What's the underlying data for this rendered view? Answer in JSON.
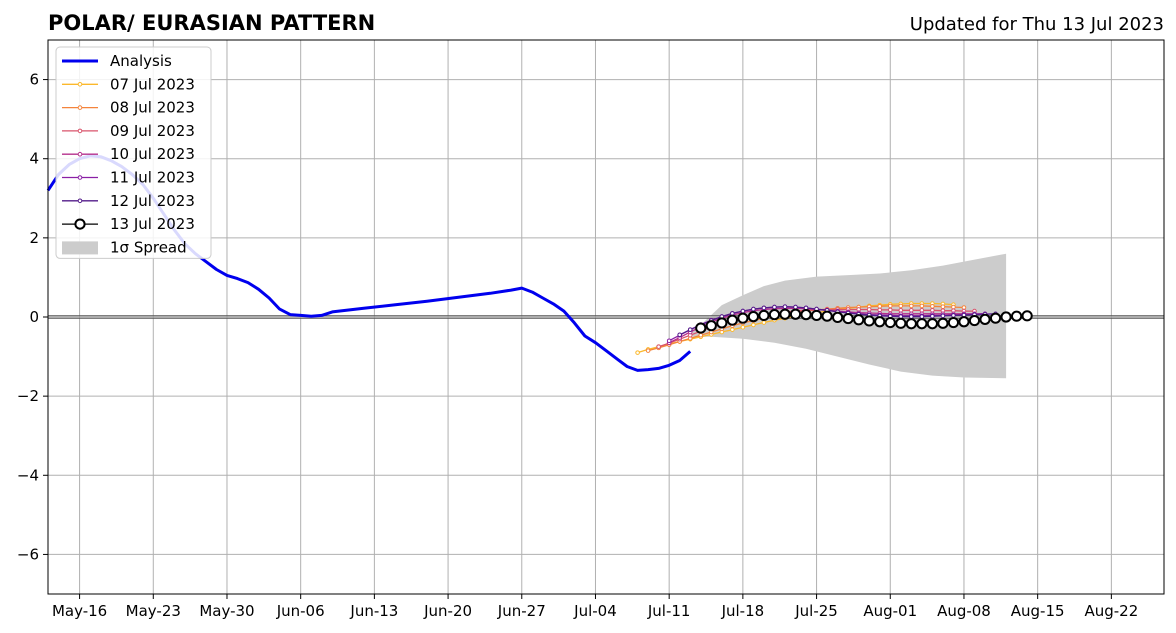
{
  "chart_data": {
    "type": "line",
    "title": "POLAR/ EURASIAN  PATTERN",
    "subtitle": "Updated for Thu 13 Jul 2023",
    "xlabel": "",
    "ylabel": "",
    "x_range": [
      "2023-05-13",
      "2023-08-27"
    ],
    "ylim": [
      -7,
      7
    ],
    "yticks": [
      6,
      4,
      2,
      0,
      -2,
      -4,
      -6
    ],
    "ytick_labels": [
      "6",
      "4",
      "2",
      "0",
      "−2",
      "−4",
      "−6"
    ],
    "xticks": [
      "2023-05-16",
      "2023-05-23",
      "2023-05-30",
      "2023-06-06",
      "2023-06-13",
      "2023-06-20",
      "2023-06-27",
      "2023-07-04",
      "2023-07-11",
      "2023-07-18",
      "2023-07-25",
      "2023-08-01",
      "2023-08-08",
      "2023-08-15",
      "2023-08-22"
    ],
    "xtick_labels": [
      "May-16",
      "May-23",
      "May-30",
      "Jun-06",
      "Jun-13",
      "Jun-20",
      "Jun-27",
      "Jul-04",
      "Jul-11",
      "Jul-18",
      "Jul-25",
      "Aug-01",
      "Aug-08",
      "Aug-15",
      "Aug-22"
    ],
    "grid": true,
    "zero_line": true,
    "legend_position": "upper-left",
    "analysis": {
      "name": "Analysis",
      "color": "#0000ee",
      "points": [
        [
          "2023-05-13",
          3.2
        ],
        [
          "2023-05-14",
          3.6
        ],
        [
          "2023-05-15",
          3.85
        ],
        [
          "2023-05-16",
          4.0
        ],
        [
          "2023-05-17",
          4.07
        ],
        [
          "2023-05-18",
          4.05
        ],
        [
          "2023-05-19",
          3.95
        ],
        [
          "2023-05-20",
          3.8
        ],
        [
          "2023-05-21",
          3.6
        ],
        [
          "2023-05-22",
          3.35
        ],
        [
          "2023-05-23",
          3.0
        ],
        [
          "2023-05-24",
          2.6
        ],
        [
          "2023-05-25",
          2.2
        ],
        [
          "2023-05-26",
          1.85
        ],
        [
          "2023-05-27",
          1.6
        ],
        [
          "2023-05-28",
          1.4
        ],
        [
          "2023-05-29",
          1.2
        ],
        [
          "2023-05-30",
          1.05
        ],
        [
          "2023-05-31",
          0.97
        ],
        [
          "2023-06-01",
          0.87
        ],
        [
          "2023-06-02",
          0.7
        ],
        [
          "2023-06-03",
          0.48
        ],
        [
          "2023-06-04",
          0.2
        ],
        [
          "2023-06-05",
          0.06
        ],
        [
          "2023-06-06",
          0.04
        ],
        [
          "2023-06-07",
          0.02
        ],
        [
          "2023-06-08",
          0.04
        ],
        [
          "2023-06-09",
          0.13
        ],
        [
          "2023-06-12",
          0.22
        ],
        [
          "2023-06-15",
          0.31
        ],
        [
          "2023-06-18",
          0.4
        ],
        [
          "2023-06-21",
          0.5
        ],
        [
          "2023-06-24",
          0.6
        ],
        [
          "2023-06-26",
          0.68
        ],
        [
          "2023-06-27",
          0.73
        ],
        [
          "2023-06-28",
          0.63
        ],
        [
          "2023-06-29",
          0.48
        ],
        [
          "2023-06-30",
          0.33
        ],
        [
          "2023-07-01",
          0.15
        ],
        [
          "2023-07-02",
          -0.15
        ],
        [
          "2023-07-03",
          -0.48
        ],
        [
          "2023-07-04",
          -0.65
        ],
        [
          "2023-07-05",
          -0.85
        ],
        [
          "2023-07-06",
          -1.05
        ],
        [
          "2023-07-07",
          -1.25
        ],
        [
          "2023-07-08",
          -1.35
        ],
        [
          "2023-07-09",
          -1.33
        ],
        [
          "2023-07-10",
          -1.3
        ],
        [
          "2023-07-11",
          -1.22
        ],
        [
          "2023-07-12",
          -1.1
        ],
        [
          "2023-07-13",
          -0.87
        ]
      ]
    },
    "spread": {
      "name": "1σ Spread",
      "color": "#cccccc",
      "upper": [
        [
          "2023-07-13",
          -0.35
        ],
        [
          "2023-07-14",
          -0.2
        ],
        [
          "2023-07-15",
          0.05
        ],
        [
          "2023-07-16",
          0.3
        ],
        [
          "2023-07-18",
          0.55
        ],
        [
          "2023-07-20",
          0.78
        ],
        [
          "2023-07-22",
          0.92
        ],
        [
          "2023-07-25",
          1.02
        ],
        [
          "2023-07-28",
          1.06
        ],
        [
          "2023-07-31",
          1.1
        ],
        [
          "2023-08-03",
          1.18
        ],
        [
          "2023-08-06",
          1.3
        ],
        [
          "2023-08-09",
          1.45
        ],
        [
          "2023-08-12",
          1.6
        ]
      ],
      "lower": [
        [
          "2023-07-13",
          -0.5
        ],
        [
          "2023-07-15",
          -0.5
        ],
        [
          "2023-07-18",
          -0.55
        ],
        [
          "2023-07-21",
          -0.65
        ],
        [
          "2023-07-24",
          -0.8
        ],
        [
          "2023-07-27",
          -1.0
        ],
        [
          "2023-07-30",
          -1.2
        ],
        [
          "2023-08-02",
          -1.38
        ],
        [
          "2023-08-05",
          -1.48
        ],
        [
          "2023-08-08",
          -1.53
        ],
        [
          "2023-08-12",
          -1.55
        ]
      ]
    },
    "forecasts": [
      {
        "name": "07 Jul 2023",
        "color": "#fbb82b",
        "start": "2023-07-08",
        "values": [
          -0.9,
          -0.82,
          -0.75,
          -0.68,
          -0.62,
          -0.56,
          -0.5,
          -0.44,
          -0.38,
          -0.32,
          -0.26,
          -0.2,
          -0.14,
          -0.08,
          -0.03,
          0.02,
          0.07,
          0.11,
          0.15,
          0.19,
          0.22,
          0.25,
          0.28,
          0.3,
          0.32,
          0.33,
          0.34,
          0.34,
          0.34,
          0.33,
          0.31
        ]
      },
      {
        "name": "08 Jul 2023",
        "color": "#f4843c",
        "start": "2023-07-09",
        "values": [
          -0.85,
          -0.78,
          -0.7,
          -0.62,
          -0.54,
          -0.46,
          -0.38,
          -0.3,
          -0.22,
          -0.15,
          -0.09,
          -0.03,
          0.02,
          0.07,
          0.11,
          0.15,
          0.18,
          0.2,
          0.22,
          0.24,
          0.25,
          0.26,
          0.27,
          0.28,
          0.28,
          0.28,
          0.28,
          0.27,
          0.26,
          0.25,
          0.24
        ]
      },
      {
        "name": "09 Jul 2023",
        "color": "#d9536b",
        "start": "2023-07-10",
        "values": [
          -0.75,
          -0.66,
          -0.56,
          -0.46,
          -0.36,
          -0.26,
          -0.17,
          -0.1,
          -0.04,
          0.01,
          0.06,
          0.1,
          0.13,
          0.15,
          0.17,
          0.18,
          0.19,
          0.19,
          0.19,
          0.19,
          0.19,
          0.18,
          0.18,
          0.17,
          0.17,
          0.17,
          0.17,
          0.16,
          0.16,
          0.15,
          0.15
        ]
      },
      {
        "name": "10 Jul 2023",
        "color": "#b52f8c",
        "start": "2023-07-11",
        "values": [
          -0.65,
          -0.52,
          -0.38,
          -0.25,
          -0.13,
          -0.03,
          0.05,
          0.11,
          0.16,
          0.19,
          0.21,
          0.22,
          0.22,
          0.21,
          0.19,
          0.17,
          0.15,
          0.13,
          0.11,
          0.1,
          0.09,
          0.08,
          0.08,
          0.08,
          0.08,
          0.08,
          0.08,
          0.08,
          0.08,
          0.08,
          0.08
        ]
      },
      {
        "name": "11 Jul 2023",
        "color": "#8a1fa5",
        "start": "2023-07-11",
        "values": [
          -0.6,
          -0.46,
          -0.32,
          -0.19,
          -0.08,
          0.01,
          0.09,
          0.15,
          0.2,
          0.23,
          0.25,
          0.26,
          0.25,
          0.23,
          0.2,
          0.17,
          0.14,
          0.11,
          0.08,
          0.06,
          0.05,
          0.04,
          0.03,
          0.03,
          0.03,
          0.04,
          0.04,
          0.05,
          0.06,
          0.07,
          0.08
        ]
      },
      {
        "name": "12 Jul 2023",
        "color": "#531b8a",
        "start": "2023-07-12",
        "values": [
          -0.45,
          -0.32,
          -0.2,
          -0.09,
          0.01,
          0.09,
          0.15,
          0.2,
          0.23,
          0.25,
          0.26,
          0.25,
          0.23,
          0.2,
          0.17,
          0.13,
          0.1,
          0.07,
          0.05,
          0.03,
          0.02,
          0.01,
          0.01,
          0.01,
          0.02,
          0.03,
          0.04,
          0.05,
          0.06,
          0.07,
          0.08
        ]
      },
      {
        "name": "13 Jul 2023",
        "color": "#000000",
        "start": "2023-07-14",
        "values": [
          -0.28,
          -0.22,
          -0.15,
          -0.08,
          -0.03,
          0.01,
          0.04,
          0.06,
          0.07,
          0.07,
          0.06,
          0.04,
          0.02,
          -0.01,
          -0.04,
          -0.07,
          -0.1,
          -0.12,
          -0.14,
          -0.16,
          -0.17,
          -0.17,
          -0.17,
          -0.16,
          -0.14,
          -0.12,
          -0.09,
          -0.06,
          -0.03,
          0.0,
          0.02,
          0.03
        ]
      }
    ]
  }
}
